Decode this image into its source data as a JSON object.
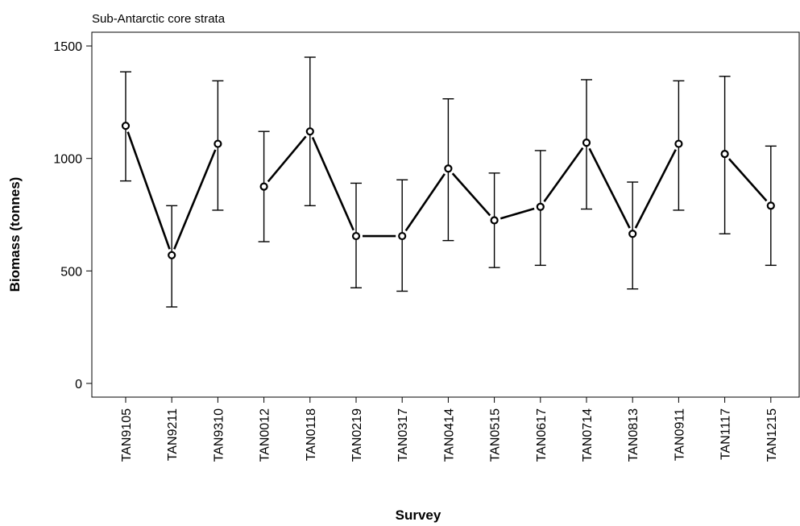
{
  "chart_data": {
    "type": "line",
    "title": "Sub-Antarctic core strata",
    "xlabel": "Survey",
    "ylabel": "Biomass (tonnes)",
    "ylim": [
      -30,
      1560
    ],
    "yticks": [
      0,
      500,
      1000,
      1500
    ],
    "categories": [
      "TAN9105",
      "TAN9211",
      "TAN9310",
      "TAN0012",
      "TAN0118",
      "TAN0219",
      "TAN0317",
      "TAN0414",
      "TAN0515",
      "TAN0617",
      "TAN0714",
      "TAN0813",
      "TAN0911",
      "TAN1117",
      "TAN1215"
    ],
    "values": [
      1145,
      570,
      1065,
      875,
      1120,
      655,
      655,
      955,
      725,
      785,
      1070,
      665,
      1065,
      1020,
      790
    ],
    "lower": [
      900,
      340,
      770,
      630,
      790,
      425,
      410,
      635,
      515,
      525,
      775,
      420,
      770,
      665,
      525
    ],
    "upper": [
      1385,
      790,
      1345,
      1120,
      1450,
      890,
      905,
      1265,
      935,
      1035,
      1350,
      895,
      1345,
      1365,
      1055
    ],
    "segments_connected": [
      true,
      true,
      false,
      true,
      true,
      true,
      true,
      true,
      true,
      true,
      true,
      true,
      false,
      true
    ],
    "grid": false,
    "legend": "none"
  }
}
